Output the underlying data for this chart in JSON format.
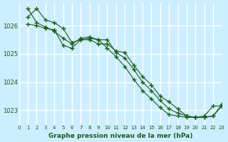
{
  "title": "Graphe pression niveau de la mer (hPa)",
  "bg_color": "#cceeff",
  "grid_color": "#ffffff",
  "line_color": "#1a5c1a",
  "marker_color": "#1a5c1a",
  "xlim": [
    0,
    23
  ],
  "ylim": [
    1022.5,
    1026.8
  ],
  "yticks": [
    1023,
    1024,
    1025,
    1026
  ],
  "xticks": [
    0,
    1,
    2,
    3,
    4,
    5,
    6,
    7,
    8,
    9,
    10,
    11,
    12,
    13,
    14,
    15,
    16,
    17,
    18,
    19,
    20,
    21,
    22,
    23
  ],
  "series": [
    [
      1026.3,
      1026.6,
      1026.2,
      1026.1,
      1025.9,
      1025.4,
      1025.5,
      1025.5,
      1025.35,
      1025.35,
      1025.1,
      1025.05,
      1024.6,
      1024.2,
      1023.9,
      1023.5,
      1023.3,
      1023.05,
      1022.8,
      1022.75,
      1022.75,
      1022.8,
      1023.15
    ],
    [
      1026.05,
      1026.0,
      1025.9,
      1025.85,
      1025.3,
      1025.2,
      1025.5,
      1025.55,
      1025.5,
      1025.5,
      1025.05,
      1024.85,
      1024.45,
      1024.0,
      1023.7,
      1023.35,
      1023.05,
      1022.9,
      1022.8,
      1022.75,
      1022.75,
      1022.8,
      1023.2
    ],
    [
      1026.6,
      1026.1,
      1025.95,
      1025.8,
      1025.55,
      1025.35,
      1025.55,
      1025.6,
      1025.5,
      1025.2,
      1024.9,
      1024.55,
      1024.1,
      1023.7,
      1023.4,
      1023.1,
      1022.85,
      1022.8,
      1022.75,
      1022.75,
      1022.8,
      1023.15,
      1023.15
    ]
  ],
  "x_series": [
    1,
    2,
    3,
    4,
    5,
    6,
    7,
    8,
    9,
    10,
    11,
    12,
    13,
    14,
    15,
    16,
    17,
    18,
    19,
    20,
    21,
    22,
    23
  ]
}
